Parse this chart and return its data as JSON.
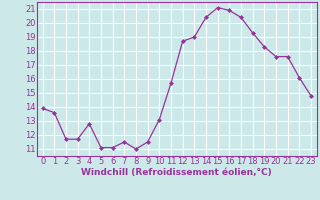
{
  "x": [
    0,
    1,
    2,
    3,
    4,
    5,
    6,
    7,
    8,
    9,
    10,
    11,
    12,
    13,
    14,
    15,
    16,
    17,
    18,
    19,
    20,
    21,
    22,
    23
  ],
  "y": [
    13.9,
    13.6,
    11.7,
    11.7,
    12.8,
    11.1,
    11.1,
    11.5,
    11.0,
    11.5,
    13.1,
    15.7,
    18.7,
    19.0,
    20.4,
    21.1,
    20.9,
    20.4,
    19.3,
    18.3,
    17.6,
    17.6,
    16.1,
    14.8
  ],
  "line_color": "#993399",
  "marker": "D",
  "marker_size": 2.0,
  "bg_color": "#cce8e8",
  "grid_color": "#ffffff",
  "xlabel": "Windchill (Refroidissement éolien,°C)",
  "ylabel_ticks": [
    11,
    12,
    13,
    14,
    15,
    16,
    17,
    18,
    19,
    20,
    21
  ],
  "ylim": [
    10.5,
    21.5
  ],
  "xlim": [
    -0.5,
    23.5
  ],
  "label_fontsize": 6.5,
  "tick_fontsize": 6.0,
  "lw": 0.9
}
